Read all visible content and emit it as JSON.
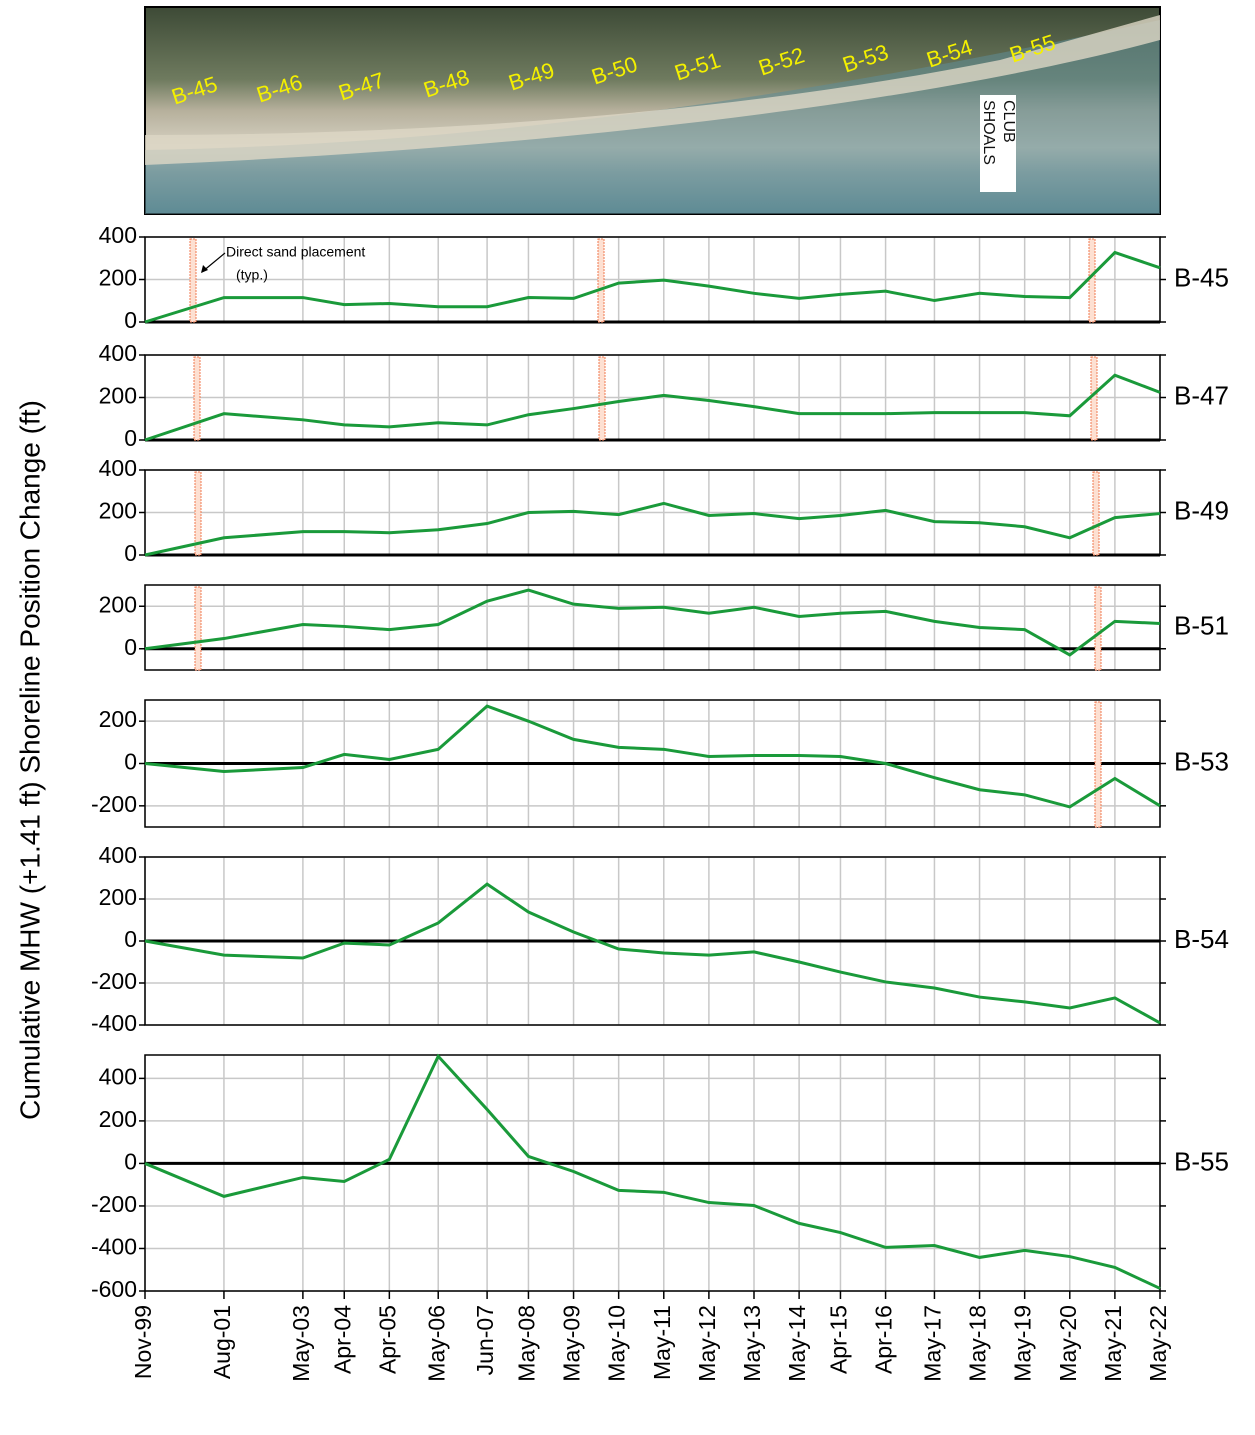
{
  "photo": {
    "labels": [
      "B-45",
      "B-46",
      "B-47",
      "B-48",
      "B-49",
      "B-50",
      "B-51",
      "B-52",
      "B-53",
      "B-54",
      "B-55"
    ],
    "club": [
      "SHOALS",
      "CLUB"
    ]
  },
  "chart_data": {
    "type": "line",
    "ylabel": "Cumulative MHW (+1.41 ft) Shoreline Position Change (ft)",
    "annotation": [
      "Direct sand placement",
      "(typ.)"
    ],
    "color": "#1a9a3a",
    "grid": true,
    "x": [
      "Nov-99",
      "Aug-01",
      "May-03",
      "Apr-04",
      "Apr-05",
      "May-06",
      "Jun-07",
      "May-08",
      "May-09",
      "May-10",
      "May-11",
      "May-12",
      "May-13",
      "May-14",
      "Apr-15",
      "Apr-16",
      "May-17",
      "May-18",
      "May-19",
      "May-20",
      "May-21",
      "May-22"
    ],
    "panels": [
      {
        "name": "B-45",
        "ylim": [
          0,
          400
        ],
        "yticks": [
          0,
          200,
          400
        ],
        "values": [
          0,
          115,
          115,
          82,
          87,
          72,
          72,
          115,
          111,
          183,
          197,
          169,
          135,
          111,
          130,
          145,
          101,
          135,
          120,
          115,
          327,
          255
        ]
      },
      {
        "name": "B-47",
        "ylim": [
          0,
          400
        ],
        "yticks": [
          0,
          200,
          400
        ],
        "values": [
          0,
          124,
          95,
          71,
          62,
          81,
          71,
          119,
          148,
          181,
          210,
          186,
          157,
          124,
          124,
          124,
          129,
          129,
          129,
          114,
          305,
          224
        ]
      },
      {
        "name": "B-49",
        "ylim": [
          0,
          400
        ],
        "yticks": [
          0,
          200,
          400
        ],
        "values": [
          0,
          81,
          110,
          110,
          105,
          119,
          148,
          200,
          205,
          190,
          243,
          186,
          195,
          171,
          186,
          210,
          157,
          152,
          133,
          81,
          176,
          195
        ]
      },
      {
        "name": "B-51",
        "ylim": [
          -100,
          300
        ],
        "yticks": [
          0,
          200
        ],
        "values": [
          0,
          48,
          114,
          105,
          90,
          114,
          224,
          276,
          210,
          190,
          195,
          167,
          195,
          152,
          167,
          176,
          129,
          100,
          90,
          -29,
          129,
          119
        ]
      },
      {
        "name": "B-53",
        "ylim": [
          -300,
          300
        ],
        "yticks": [
          -200,
          0,
          200
        ],
        "values": [
          0,
          -38,
          -19,
          43,
          19,
          67,
          271,
          200,
          114,
          76,
          67,
          33,
          38,
          38,
          33,
          0,
          -67,
          -124,
          -148,
          -205,
          -71,
          -200
        ]
      },
      {
        "name": "B-54",
        "ylim": [
          -400,
          400
        ],
        "yticks": [
          -400,
          -200,
          0,
          200,
          400
        ],
        "values": [
          0,
          -67,
          -81,
          -10,
          -19,
          86,
          271,
          138,
          43,
          -38,
          -57,
          -67,
          -52,
          -100,
          -148,
          -195,
          -224,
          -267,
          -290,
          -319,
          -271,
          -390
        ]
      },
      {
        "name": "B-55",
        "ylim": [
          -600,
          510
        ],
        "yticks": [
          -600,
          -400,
          -200,
          0,
          200,
          400
        ],
        "values": [
          0,
          -155,
          -66,
          -85,
          19,
          504,
          254,
          33,
          -38,
          -127,
          -136,
          -184,
          -198,
          -282,
          -325,
          -395,
          -386,
          -442,
          -409,
          -438,
          -489,
          -588
        ]
      }
    ]
  }
}
